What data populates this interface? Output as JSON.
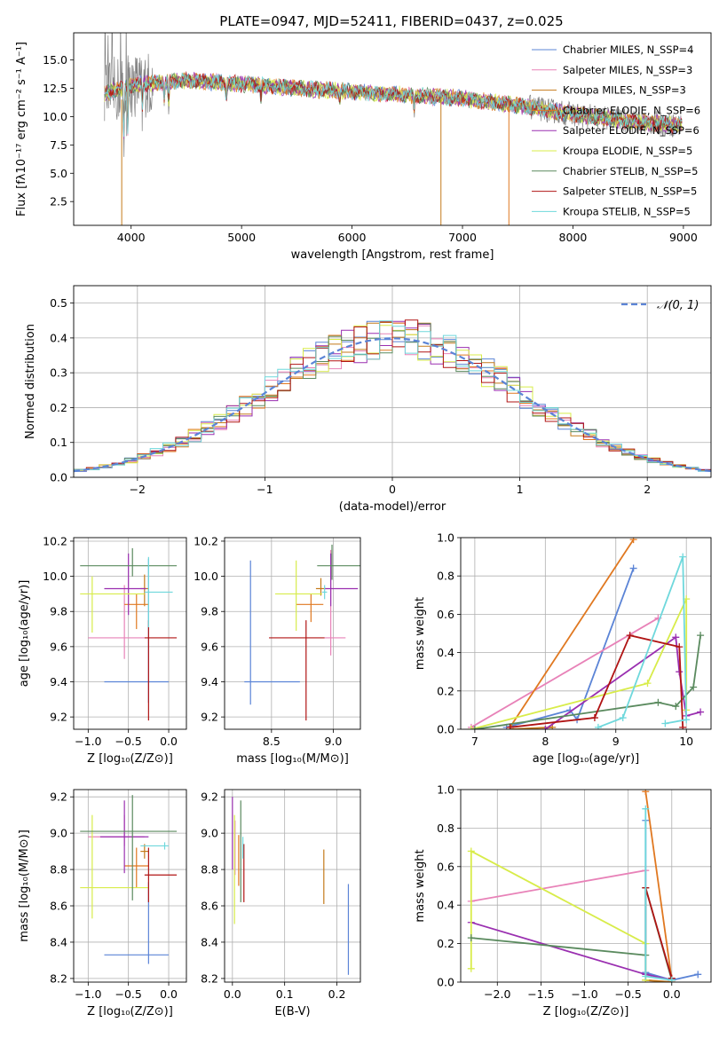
{
  "title": "PLATE=0947, MJD=52411, FIBERID=0437, z=0.025",
  "colors": {
    "Chabrier MILES": "#5b84d6",
    "Salpeter MILES": "#e882b8",
    "Kroupa MILES": "#c47a1a",
    "Chabrier ELODIE": "#e07820",
    "Salpeter ELODIE": "#9a2fb0",
    "Kroupa ELODIE": "#d8ec4a",
    "Chabrier STELIB": "#5a8a5e",
    "Salpeter STELIB": "#b01414",
    "Kroupa STELIB": "#6fd8dc",
    "data": "#808080"
  },
  "chart_data": [
    {
      "id": "spectrum",
      "type": "line",
      "title": "PLATE=0947, MJD=52411, FIBERID=0437, z=0.025",
      "xlabel": "wavelength [Angstrom, rest frame]",
      "ylabel": "Flux [fλ10⁻¹⁷ erg cm⁻² s⁻¹ A⁻¹]",
      "xlim": [
        3480,
        9250
      ],
      "ylim": [
        0.4,
        17.4
      ],
      "xticks": [
        4000,
        5000,
        6000,
        7000,
        8000,
        9000
      ],
      "yticks": [
        2.5,
        5.0,
        7.5,
        10.0,
        12.5,
        15.0
      ],
      "ytick_labels": [
        "2.5",
        "5.0",
        "7.5",
        "10.0",
        "12.5",
        "15.0"
      ],
      "legend_position": "top-right",
      "legend": [
        "Chabrier MILES, N_SSP=4",
        "Salpeter MILES, N_SSP=3",
        "Kroupa MILES, N_SSP=3",
        "Chabrier ELODIE, N_SSP=6",
        "Salpeter ELODIE, N_SSP=6",
        "Kroupa ELODIE, N_SSP=5",
        "Chabrier STELIB, N_SSP=5",
        "Salpeter STELIB, N_SSP=5",
        "Kroupa STELIB, N_SSP=5"
      ],
      "continuum": {
        "x": [
          3750,
          4000,
          4500,
          5000,
          5500,
          6000,
          6500,
          7000,
          7500,
          8000,
          8500,
          9000
        ],
        "y": [
          12.0,
          12.8,
          13.2,
          12.9,
          12.5,
          12.2,
          11.9,
          11.6,
          11.0,
          10.2,
          9.6,
          9.2
        ]
      }
    },
    {
      "id": "residuals",
      "type": "step",
      "xlabel": "(data-model)/error",
      "ylabel": "Normed distribution",
      "xlim": [
        -2.5,
        2.5
      ],
      "ylim": [
        0,
        0.55
      ],
      "xticks": [
        -2,
        -1,
        0,
        1,
        2
      ],
      "xtick_labels": [
        "−2",
        "−1",
        "0",
        "1",
        "2"
      ],
      "yticks": [
        0.0,
        0.1,
        0.2,
        0.3,
        0.4,
        0.5
      ],
      "ytick_labels": [
        "0.0",
        "0.1",
        "0.2",
        "0.3",
        "0.4",
        "0.5"
      ],
      "legend_position": "top-right",
      "legend": [
        "𝒩(0, 1)"
      ],
      "bin_width": 0.1
    },
    {
      "id": "age_vs_Z",
      "type": "errorbar",
      "xlabel": "Z [log₁₀(Z/Z⊙)]",
      "ylabel": "age [log₁₀(age/yr)]",
      "xlim": [
        -1.18,
        0.22
      ],
      "ylim": [
        9.13,
        10.22
      ],
      "xticks": [
        -1.0,
        -0.5,
        0.0
      ],
      "xtick_labels": [
        "−1.0",
        "−0.5",
        "0.0"
      ],
      "yticks": [
        9.2,
        9.4,
        9.6,
        9.8,
        10.0,
        10.2
      ],
      "ytick_labels": [
        "9.2",
        "9.4",
        "9.6",
        "9.8",
        "10.0",
        "10.2"
      ],
      "points": [
        {
          "model": "Chabrier MILES",
          "x": -0.25,
          "xerr": [
            0.55,
            0.25
          ],
          "y": 9.4,
          "yerr": [
            0.12,
            0.7
          ]
        },
        {
          "model": "Salpeter MILES",
          "x": -0.55,
          "xerr": [
            0.45,
            0.25
          ],
          "y": 9.65,
          "yerr": [
            0.12,
            0.3
          ]
        },
        {
          "model": "Kroupa MILES",
          "x": -0.3,
          "xerr": [
            0.05,
            0.05
          ],
          "y": 9.93,
          "yerr": [
            0.1,
            0.08
          ]
        },
        {
          "model": "Chabrier ELODIE",
          "x": -0.4,
          "xerr": [
            0.15,
            0.15
          ],
          "y": 9.84,
          "yerr": [
            0.14,
            0.06
          ]
        },
        {
          "model": "Salpeter ELODIE",
          "x": -0.5,
          "xerr": [
            0.3,
            0.22
          ],
          "y": 9.93,
          "yerr": [
            0.15,
            0.2
          ]
        },
        {
          "model": "Kroupa ELODIE",
          "x": -0.95,
          "xerr": [
            0.15,
            0.65
          ],
          "y": 9.9,
          "yerr": [
            0.22,
            0.1
          ]
        },
        {
          "model": "Chabrier STELIB",
          "x": -0.45,
          "xerr": [
            0.65,
            0.55
          ],
          "y": 10.06,
          "yerr": [
            0.06,
            0.1
          ]
        },
        {
          "model": "Salpeter STELIB",
          "x": -0.25,
          "xerr": [
            0.05,
            0.35
          ],
          "y": 9.65,
          "yerr": [
            0.47,
            0.1
          ]
        },
        {
          "model": "Kroupa STELIB",
          "x": -0.25,
          "xerr": [
            0.05,
            0.3
          ],
          "y": 9.91,
          "yerr": [
            0.2,
            0.2
          ]
        }
      ]
    },
    {
      "id": "age_vs_mass",
      "type": "errorbar",
      "xlabel": "mass [log₁₀(M/M⊙)]",
      "ylabel": "",
      "xlim": [
        8.12,
        9.22
      ],
      "ylim": [
        9.13,
        10.22
      ],
      "xticks": [
        8.5,
        9.0
      ],
      "xtick_labels": [
        "8.5",
        "9.0"
      ],
      "yticks": [
        9.2,
        9.4,
        9.6,
        9.8,
        10.0,
        10.2
      ],
      "ytick_labels": [
        "9.2",
        "9.4",
        "9.6",
        "9.8",
        "10.0",
        "10.2"
      ],
      "points": [
        {
          "model": "Chabrier MILES",
          "x": 8.33,
          "xerr": [
            0.05,
            0.4
          ],
          "y": 9.4,
          "yerr": [
            0.13,
            0.69
          ]
        },
        {
          "model": "Salpeter MILES",
          "x": 8.98,
          "xerr": [
            0.05,
            0.12
          ],
          "y": 9.65,
          "yerr": [
            0.1,
            0.5
          ]
        },
        {
          "model": "Kroupa MILES",
          "x": 8.9,
          "xerr": [
            0.04,
            0.04
          ],
          "y": 9.93,
          "yerr": [
            0.04,
            0.06
          ]
        },
        {
          "model": "Chabrier ELODIE",
          "x": 8.82,
          "xerr": [
            0.12,
            0.1
          ],
          "y": 9.84,
          "yerr": [
            0.1,
            0.06
          ]
        },
        {
          "model": "Salpeter ELODIE",
          "x": 8.98,
          "xerr": [
            0.05,
            0.22
          ],
          "y": 9.93,
          "yerr": [
            0.1,
            0.2
          ]
        },
        {
          "model": "Kroupa ELODIE",
          "x": 8.7,
          "xerr": [
            0.17,
            0.21
          ],
          "y": 9.9,
          "yerr": [
            0.21,
            0.19
          ]
        },
        {
          "model": "Chabrier STELIB",
          "x": 8.99,
          "xerr": [
            0.12,
            0.24
          ],
          "y": 10.06,
          "yerr": [
            0.08,
            0.12
          ]
        },
        {
          "model": "Salpeter STELIB",
          "x": 8.78,
          "xerr": [
            0.3,
            0.15
          ],
          "y": 9.65,
          "yerr": [
            0.47,
            0.1
          ]
        },
        {
          "model": "Kroupa STELIB",
          "x": 8.93,
          "xerr": [
            0.02,
            0.02
          ],
          "y": 9.91,
          "yerr": [
            0.04,
            0.04
          ]
        }
      ]
    },
    {
      "id": "weight_vs_age",
      "type": "line",
      "xlabel": "age [log₁₀(age/yr)]",
      "ylabel": "mass weight",
      "xlim": [
        6.8,
        10.35
      ],
      "ylim": [
        0,
        1.0
      ],
      "xticks": [
        7,
        8,
        9,
        10
      ],
      "xtick_labels": [
        "7",
        "8",
        "9",
        "10"
      ],
      "yticks": [
        0.0,
        0.2,
        0.4,
        0.6,
        0.8,
        1.0
      ],
      "ytick_labels": [
        "0.0",
        "0.2",
        "0.4",
        "0.6",
        "0.8",
        "1.0"
      ],
      "series": [
        {
          "model": "Chabrier MILES",
          "x": [
            7.45,
            8.35,
            8.45,
            9.25
          ],
          "y": [
            0.01,
            0.1,
            0.05,
            0.84
          ]
        },
        {
          "model": "Salpeter MILES",
          "x": [
            6.95,
            9.6
          ],
          "y": [
            0.01,
            0.58
          ]
        },
        {
          "model": "Kroupa MILES",
          "x": [
            7.5,
            8.1
          ],
          "y": [
            0.0,
            0.01
          ]
        },
        {
          "model": "Chabrier ELODIE",
          "x": [
            7.5,
            9.25
          ],
          "y": [
            0.01,
            0.99
          ]
        },
        {
          "model": "Salpeter ELODIE",
          "x": [
            8.0,
            9.85,
            9.9,
            10.0,
            10.2
          ],
          "y": [
            0.0,
            0.48,
            0.3,
            0.07,
            0.09
          ]
        },
        {
          "model": "Kroupa ELODIE",
          "x": [
            6.95,
            9.45,
            10.0,
            10.0
          ],
          "y": [
            0.0,
            0.24,
            0.68,
            0.1
          ]
        },
        {
          "model": "Chabrier STELIB",
          "x": [
            7.0,
            9.6,
            9.85,
            10.1,
            10.2
          ],
          "y": [
            0.0,
            0.14,
            0.12,
            0.22,
            0.49
          ]
        },
        {
          "model": "Salpeter STELIB",
          "x": [
            7.5,
            8.7,
            9.2,
            9.9,
            9.95
          ],
          "y": [
            0.01,
            0.06,
            0.49,
            0.43,
            0.01
          ]
        },
        {
          "model": "Kroupa STELIB",
          "x": [
            8.75,
            9.1,
            9.95,
            10.0,
            9.7
          ],
          "y": [
            0.01,
            0.06,
            0.9,
            0.05,
            0.03
          ]
        }
      ]
    },
    {
      "id": "mass_vs_Z",
      "type": "errorbar",
      "xlabel": "Z [log₁₀(Z/Z⊙)]",
      "ylabel": "mass [log₁₀(M/M⊙)]",
      "xlim": [
        -1.18,
        0.22
      ],
      "ylim": [
        8.18,
        9.24
      ],
      "xticks": [
        -1.0,
        -0.5,
        0.0
      ],
      "xtick_labels": [
        "−1.0",
        "−0.5",
        "0.0"
      ],
      "yticks": [
        8.2,
        8.4,
        8.6,
        8.8,
        9.0,
        9.2
      ],
      "ytick_labels": [
        "8.2",
        "8.4",
        "8.6",
        "8.8",
        "9.0",
        "9.2"
      ],
      "points": [
        {
          "model": "Chabrier MILES",
          "x": -0.25,
          "xerr": [
            0.55,
            0.25
          ],
          "y": 8.33,
          "yerr": [
            0.05,
            0.4
          ]
        },
        {
          "model": "Salpeter MILES",
          "x": -0.55,
          "xerr": [
            0.45,
            0.25
          ],
          "y": 8.98,
          "yerr": [
            0.05,
            0.12
          ]
        },
        {
          "model": "Kroupa MILES",
          "x": -0.3,
          "xerr": [
            0.05,
            0.05
          ],
          "y": 8.9,
          "yerr": [
            0.04,
            0.04
          ]
        },
        {
          "model": "Chabrier ELODIE",
          "x": -0.4,
          "xerr": [
            0.15,
            0.15
          ],
          "y": 8.82,
          "yerr": [
            0.12,
            0.1
          ]
        },
        {
          "model": "Salpeter ELODIE",
          "x": -0.55,
          "xerr": [
            0.3,
            0.3
          ],
          "y": 8.98,
          "yerr": [
            0.2,
            0.2
          ]
        },
        {
          "model": "Kroupa ELODIE",
          "x": -0.95,
          "xerr": [
            0.15,
            0.7
          ],
          "y": 8.7,
          "yerr": [
            0.17,
            0.4
          ]
        },
        {
          "model": "Chabrier STELIB",
          "x": -0.45,
          "xerr": [
            0.65,
            0.55
          ],
          "y": 9.01,
          "yerr": [
            0.38,
            0.2
          ]
        },
        {
          "model": "Salpeter STELIB",
          "x": -0.25,
          "xerr": [
            0.05,
            0.35
          ],
          "y": 8.77,
          "yerr": [
            0.15,
            0.15
          ]
        },
        {
          "model": "Kroupa STELIB",
          "x": -0.05,
          "xerr": [
            0.3,
            0.05
          ],
          "y": 8.93,
          "yerr": [
            0.02,
            0.02
          ]
        }
      ]
    },
    {
      "id": "mass_vs_EBV",
      "type": "errorbar",
      "xlabel": "E(B-V)",
      "ylabel": "",
      "xlim": [
        -0.015,
        0.245
      ],
      "ylim": [
        8.18,
        9.24
      ],
      "xticks": [
        0.0,
        0.1,
        0.2
      ],
      "xtick_labels": [
        "0.0",
        "0.1",
        "0.2"
      ],
      "yticks": [
        8.2,
        8.4,
        8.6,
        8.8,
        9.0,
        9.2
      ],
      "ytick_labels": [
        "8.2",
        "8.4",
        "8.6",
        "8.8",
        "9.0",
        "9.2"
      ],
      "points": [
        {
          "model": "Chabrier MILES",
          "x": 0.222,
          "xerr": [
            0,
            0
          ],
          "y": 8.47,
          "yerr": [
            0.25,
            0.25
          ]
        },
        {
          "model": "Salpeter MILES",
          "x": 0.005,
          "xerr": [
            0,
            0
          ],
          "y": 8.92,
          "yerr": [
            0.15,
            0.15
          ]
        },
        {
          "model": "Kroupa MILES",
          "x": 0.175,
          "xerr": [
            0,
            0
          ],
          "y": 8.76,
          "yerr": [
            0.15,
            0.15
          ]
        },
        {
          "model": "Chabrier ELODIE",
          "x": 0.012,
          "xerr": [
            0,
            0
          ],
          "y": 8.85,
          "yerr": [
            0.14,
            0.14
          ]
        },
        {
          "model": "Salpeter ELODIE",
          "x": 0.0,
          "xerr": [
            0,
            0
          ],
          "y": 9.0,
          "yerr": [
            0.2,
            0.2
          ]
        },
        {
          "model": "Kroupa ELODIE",
          "x": 0.004,
          "xerr": [
            0,
            0
          ],
          "y": 8.8,
          "yerr": [
            0.3,
            0.3
          ]
        },
        {
          "model": "Chabrier STELIB",
          "x": 0.016,
          "xerr": [
            0,
            0
          ],
          "y": 8.9,
          "yerr": [
            0.28,
            0.28
          ]
        },
        {
          "model": "Salpeter STELIB",
          "x": 0.022,
          "xerr": [
            0,
            0
          ],
          "y": 8.78,
          "yerr": [
            0.16,
            0.16
          ]
        },
        {
          "model": "Kroupa STELIB",
          "x": 0.02,
          "xerr": [
            0,
            0
          ],
          "y": 8.92,
          "yerr": [
            0.06,
            0.06
          ]
        }
      ]
    },
    {
      "id": "weight_vs_Z",
      "type": "line",
      "xlabel": "Z [log₁₀(Z/Z⊙)]",
      "ylabel": "mass weight",
      "xlim": [
        -2.42,
        0.45
      ],
      "ylim": [
        0,
        1.0
      ],
      "xticks": [
        -2.0,
        -1.5,
        -1.0,
        -0.5,
        0.0
      ],
      "xtick_labels": [
        "−2.0",
        "−1.5",
        "−1.0",
        "−0.5",
        "0.0"
      ],
      "yticks": [
        0.0,
        0.2,
        0.4,
        0.6,
        0.8,
        1.0
      ],
      "ytick_labels": [
        "0.0",
        "0.2",
        "0.4",
        "0.6",
        "0.8",
        "1.0"
      ],
      "series": [
        {
          "model": "Chabrier MILES",
          "x": [
            -0.3,
            -0.3,
            0.0,
            0.3
          ],
          "y": [
            0.84,
            0.05,
            0.01,
            0.04
          ]
        },
        {
          "model": "Salpeter MILES",
          "x": [
            -2.3,
            -0.3,
            -0.3,
            0.0
          ],
          "y": [
            0.42,
            0.58,
            0.01,
            0.0
          ]
        },
        {
          "model": "Kroupa MILES",
          "x": [
            -0.3,
            0.0
          ],
          "y": [
            0.01,
            0.0
          ]
        },
        {
          "model": "Chabrier ELODIE",
          "x": [
            -0.3,
            0.0
          ],
          "y": [
            0.99,
            0.01
          ]
        },
        {
          "model": "Salpeter ELODIE",
          "x": [
            -2.3,
            -0.3,
            0.0
          ],
          "y": [
            0.31,
            0.04,
            0.01
          ]
        },
        {
          "model": "Kroupa ELODIE",
          "x": [
            -2.3,
            -2.3,
            -0.3,
            -0.3
          ],
          "y": [
            0.07,
            0.68,
            0.2,
            0.01
          ]
        },
        {
          "model": "Chabrier STELIB",
          "x": [
            -2.3,
            -0.3,
            -0.3,
            0.0
          ],
          "y": [
            0.23,
            0.14,
            0.49,
            0.01
          ]
        },
        {
          "model": "Salpeter STELIB",
          "x": [
            -0.3,
            0.0
          ],
          "y": [
            0.49,
            0.02
          ]
        },
        {
          "model": "Kroupa STELIB",
          "x": [
            -0.3,
            -0.3,
            0.0
          ],
          "y": [
            0.9,
            0.03,
            0.01
          ]
        }
      ]
    }
  ]
}
